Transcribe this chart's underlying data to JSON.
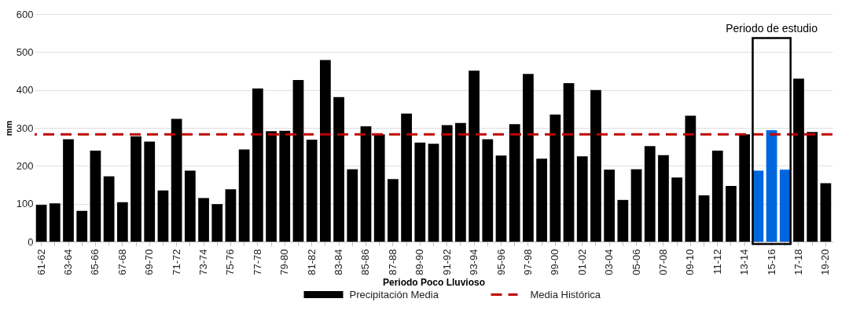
{
  "chart_data": {
    "type": "bar",
    "xlabel": "Periodo Poco Lluvioso",
    "ylabel": "mm",
    "categories": [
      "61-62",
      null,
      "63-64",
      null,
      "65-66",
      null,
      "67-68",
      null,
      "69-70",
      null,
      "71-72",
      null,
      "73-74",
      null,
      "75-76",
      null,
      "77-78",
      null,
      "79-80",
      null,
      "81-82",
      null,
      "83-84",
      null,
      "85-86",
      null,
      "87-88",
      null,
      "89-90",
      null,
      "91-92",
      null,
      "93-94",
      null,
      "95-96",
      null,
      "97-98",
      null,
      "99-00",
      null,
      "01-02",
      null,
      "03-04",
      null,
      "05-06",
      null,
      "07-08",
      null,
      "09-10",
      null,
      "11-12",
      null,
      "13-14",
      null,
      "15-16",
      null,
      "17-18",
      null,
      "19-20"
    ],
    "series": [
      {
        "name": "Precipitación Media",
        "color": "#000000",
        "colors": [
          "#000000",
          "#000000",
          "#000000",
          "#000000",
          "#000000",
          "#000000",
          "#000000",
          "#000000",
          "#000000",
          "#000000",
          "#000000",
          "#000000",
          "#000000",
          "#000000",
          "#000000",
          "#000000",
          "#000000",
          "#000000",
          "#000000",
          "#000000",
          "#000000",
          "#000000",
          "#000000",
          "#000000",
          "#000000",
          "#000000",
          "#000000",
          "#000000",
          "#000000",
          "#000000",
          "#000000",
          "#000000",
          "#000000",
          "#000000",
          "#000000",
          "#000000",
          "#000000",
          "#000000",
          "#000000",
          "#000000",
          "#000000",
          "#000000",
          "#000000",
          "#000000",
          "#000000",
          "#000000",
          "#000000",
          "#000000",
          "#000000",
          "#000000",
          "#000000",
          "#000000",
          "#000000",
          "#0066dd",
          "#0066dd",
          "#0066dd",
          "#000000",
          "#000000",
          "#000000"
        ],
        "values": [
          97,
          101,
          270,
          81,
          240,
          172,
          104,
          278,
          264,
          135,
          324,
          187,
          115,
          99,
          138,
          243,
          404,
          291,
          292,
          426,
          269,
          479,
          381,
          191,
          304,
          283,
          165,
          338,
          261,
          258,
          307,
          313,
          451,
          270,
          227,
          310,
          442,
          219,
          335,
          418,
          225,
          400,
          190,
          110,
          191,
          252,
          228,
          169,
          332,
          122,
          240,
          147,
          283,
          187,
          294,
          190,
          430,
          289,
          154
        ]
      }
    ],
    "ylim": [
      0,
      600
    ],
    "yticks": [
      0,
      100,
      200,
      300,
      400,
      500,
      600
    ],
    "grid": "y",
    "legend": "bottom",
    "ref_lines": [
      {
        "axis": "y",
        "value": 283,
        "label": "Media Histórica",
        "color": "#c00000",
        "line_style": "dashed"
      }
    ],
    "annotations": [
      "Periodo de estudio"
    ]
  }
}
